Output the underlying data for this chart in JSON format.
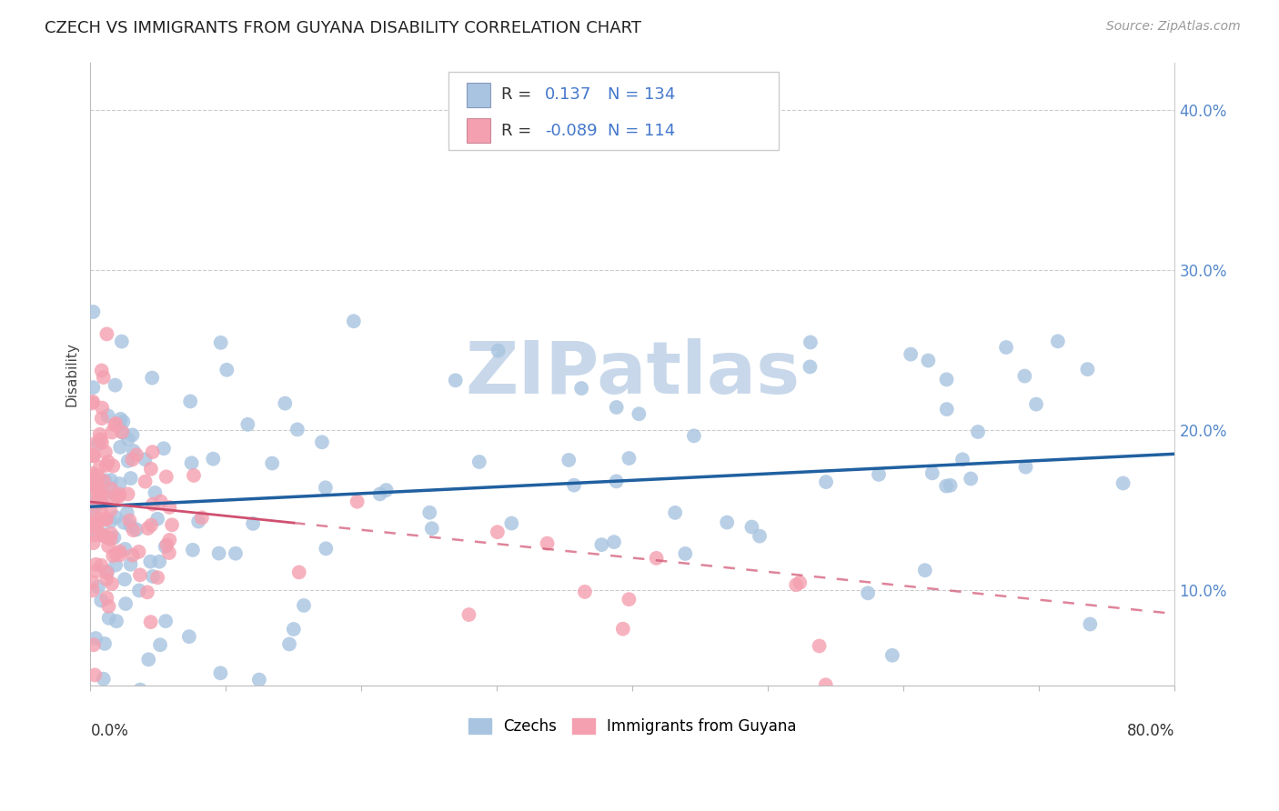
{
  "title": "CZECH VS IMMIGRANTS FROM GUYANA DISABILITY CORRELATION CHART",
  "source": "Source: ZipAtlas.com",
  "ylabel": "Disability",
  "xlim": [
    0.0,
    80.0
  ],
  "ylim": [
    4.0,
    43.0
  ],
  "yticks": [
    10.0,
    20.0,
    30.0,
    40.0
  ],
  "ytick_labels": [
    "10.0%",
    "20.0%",
    "30.0%",
    "40.0%"
  ],
  "czech_color": "#a8c4e0",
  "guyana_color": "#f4a0b0",
  "czech_line_color": "#2060a0",
  "guyana_line_color": "#d05070",
  "R_czech": 0.137,
  "N_czech": 134,
  "R_guyana": -0.089,
  "N_guyana": 114,
  "background_color": "#ffffff",
  "grid_color": "#cccccc",
  "watermark": "ZIPatlas",
  "watermark_color": "#c8d8ea",
  "legend_label_czech": "Czechs",
  "legend_label_guyana": "Immigrants from Guyana",
  "czech_line_y0": 15.2,
  "czech_line_y1": 18.5,
  "guyana_line_y0": 15.5,
  "guyana_line_y1": 8.5,
  "guyana_solid_end_x": 15.0,
  "title_fontsize": 13,
  "source_fontsize": 10,
  "tick_label_fontsize": 12
}
